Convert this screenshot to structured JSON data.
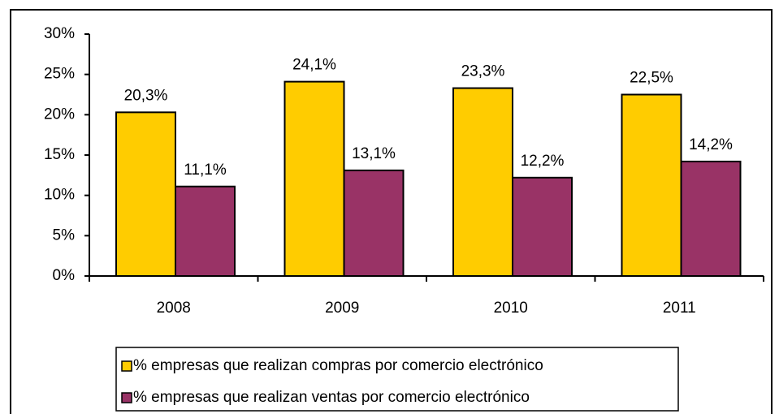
{
  "chart_data": {
    "type": "bar",
    "categories": [
      "2008",
      "2009",
      "2010",
      "2011"
    ],
    "series": [
      {
        "name": "% empresas que realizan compras por comercio electrónico",
        "color": "#FFCC00",
        "values": [
          20.3,
          24.1,
          23.3,
          22.5
        ],
        "value_labels": [
          "20,3%",
          "24,1%",
          "23,3%",
          "22,5%"
        ]
      },
      {
        "name": "% empresas que realizan ventas por comercio electrónico",
        "color": "#993366",
        "values": [
          11.1,
          13.1,
          12.2,
          14.2
        ],
        "value_labels": [
          "11,1%",
          "13,1%",
          "12,2%",
          "14,2%"
        ]
      }
    ],
    "ylim": [
      0,
      30
    ],
    "yticks": [
      {
        "value": 0,
        "label": "0%"
      },
      {
        "value": 5,
        "label": "5%"
      },
      {
        "value": 10,
        "label": "10%"
      },
      {
        "value": 15,
        "label": "15%"
      },
      {
        "value": 20,
        "label": "20%"
      },
      {
        "value": 25,
        "label": "25%"
      },
      {
        "value": 30,
        "label": "30%"
      }
    ],
    "grid": false
  }
}
